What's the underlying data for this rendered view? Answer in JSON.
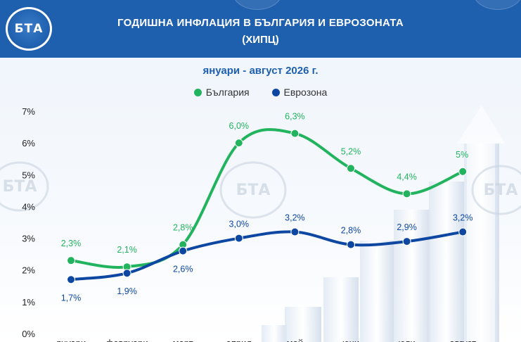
{
  "header": {
    "title_line1": "ГОДИШНА ИНФЛАЦИЯ В БЪЛГАРИЯ И ЕВРОЗОНАТА",
    "title_line2": "(ХИПЦ)",
    "logo_text": "БТА"
  },
  "watermark_text": "БТА",
  "colors": {
    "header_bg": "#1e5fae",
    "bulgaria": "#22b35e",
    "eurozone": "#0d47a1"
  },
  "chart_data": {
    "type": "line",
    "title": "ГОДИШНА ИНФЛАЦИЯ В БЪЛГАРИЯ И ЕВРОЗОНАТА (ХИПЦ)",
    "subtitle": "януари - август 2026 г.",
    "categories": [
      "януари",
      "февруари",
      "март",
      "април",
      "май",
      "юни",
      "юли",
      "август"
    ],
    "ylim": [
      0,
      7
    ],
    "yticks": [
      0,
      1,
      2,
      3,
      4,
      5,
      6,
      7
    ],
    "ytick_labels": [
      "0%",
      "1%",
      "2%",
      "3%",
      "4%",
      "5%",
      "6%",
      "7%"
    ],
    "grid": false,
    "legend_position": "top-center",
    "series": [
      {
        "name": "България",
        "color": "#22b35e",
        "values": [
          2.3,
          2.1,
          2.8,
          6.0,
          6.3,
          5.2,
          4.4,
          5.1
        ],
        "labels": [
          "2,3%",
          "2,1%",
          "2,8%",
          "6,0%",
          "6,3%",
          "5,2%",
          "4,4%",
          "5%"
        ]
      },
      {
        "name": "Еврозона",
        "color": "#0d47a1",
        "values": [
          1.7,
          1.9,
          2.6,
          3.0,
          3.2,
          2.8,
          2.9,
          3.2
        ],
        "labels": [
          "1,7%",
          "1,9%",
          "2,6%",
          "3,0%",
          "3,2%",
          "2,8%",
          "2,9%",
          "3,2%"
        ]
      }
    ]
  }
}
